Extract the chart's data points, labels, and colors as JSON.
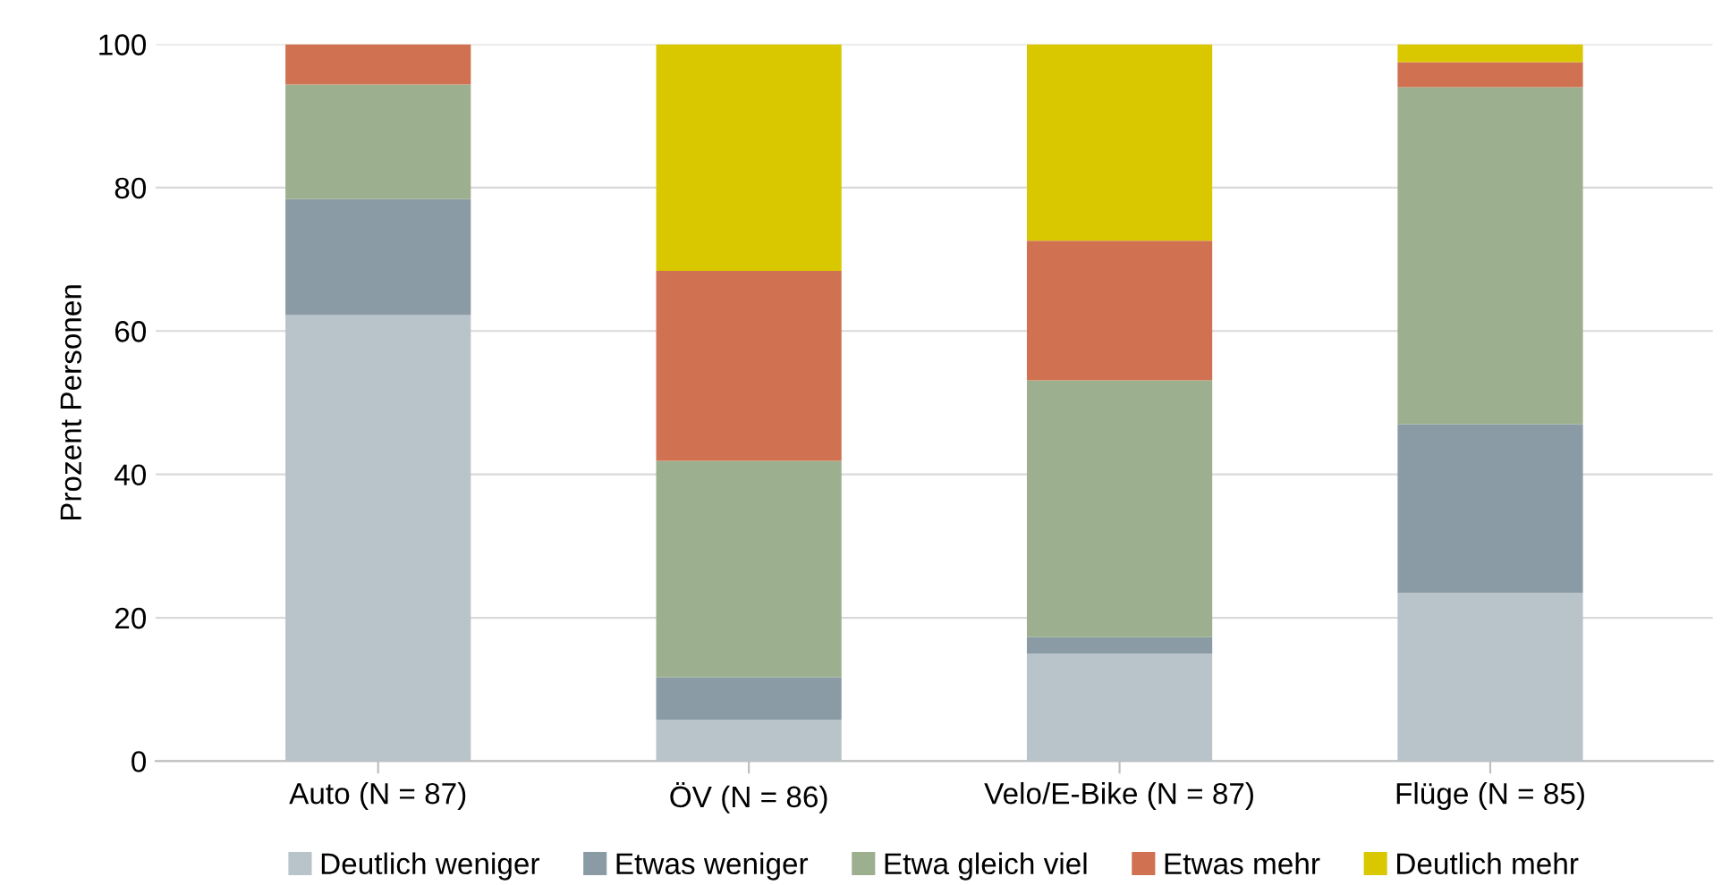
{
  "chart_data": {
    "type": "bar",
    "stacked": true,
    "ylabel": "Prozent Personen",
    "categories": [
      "Auto (N = 87)",
      "ÖV (N = 86)",
      "Velo/E-Bike (N = 87)",
      "Flüge (N = 85)"
    ],
    "series": [
      {
        "name": "Deutlich weniger",
        "color": "#b8c4c9",
        "values": [
          62.2,
          5.8,
          15.0,
          23.5
        ]
      },
      {
        "name": "Etwas weniger",
        "color": "#8a9ba5",
        "values": [
          16.2,
          5.9,
          2.3,
          23.5
        ]
      },
      {
        "name": "Etwa gleich viel",
        "color": "#9cb08f",
        "values": [
          16.0,
          30.2,
          35.8,
          47.0
        ]
      },
      {
        "name": "Etwas mehr",
        "color": "#d07252",
        "values": [
          5.6,
          26.5,
          19.5,
          3.5
        ]
      },
      {
        "name": "Deutlich mehr",
        "color": "#d9c800",
        "values": [
          0,
          31.6,
          27.4,
          2.5
        ]
      }
    ],
    "ylim": [
      0,
      100
    ],
    "yticks": [
      0,
      20,
      40,
      60,
      80,
      100
    ],
    "grid": "y",
    "legend": "bottom"
  }
}
